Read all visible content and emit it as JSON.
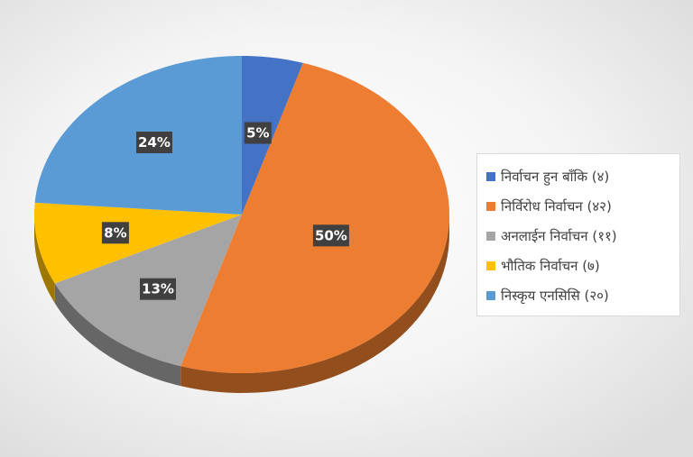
{
  "chart_data": {
    "type": "pie",
    "title": "",
    "style": "3d",
    "legend_position": "right",
    "slices": [
      {
        "legend": "निर्वाचन हुन बाँकि (४)",
        "value": 4,
        "percent_label": "5%",
        "color": "#4472C4"
      },
      {
        "legend": "निर्विरोध निर्वाचन (४२)",
        "value": 42,
        "percent_label": "50%",
        "color": "#ED7D31"
      },
      {
        "legend": "अनलाईन निर्वाचन (११)",
        "value": 11,
        "percent_label": "13%",
        "color": "#A5A5A5"
      },
      {
        "legend": "भौतिक निर्वाचन (७)",
        "value": 7,
        "percent_label": "8%",
        "color": "#FFC000"
      },
      {
        "legend": "निस्कृय एनसिसि (२०)",
        "value": 20,
        "percent_label": "24%",
        "color": "#5B9BD5"
      }
    ]
  }
}
